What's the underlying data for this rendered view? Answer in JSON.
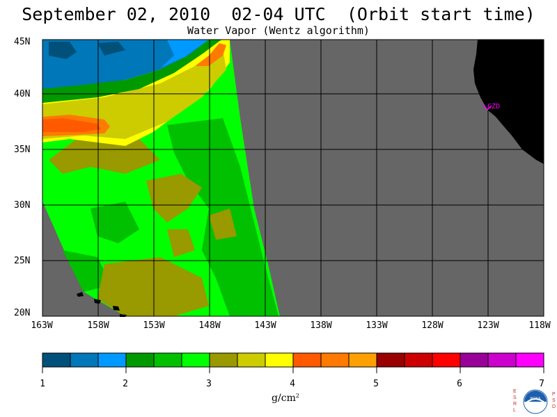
{
  "title": "September 02, 2010  02-04 UTC  (Orbit start time)",
  "subtitle": "Water Vapor (Wentz algorithm)",
  "map": {
    "lat_labels": [
      "45N",
      "40N",
      "35N",
      "30N",
      "25N",
      "20N"
    ],
    "lon_labels": [
      "163W",
      "158W",
      "153W",
      "148W",
      "143W",
      "138W",
      "133W",
      "128W",
      "123W",
      "118W"
    ],
    "station_label": "CZD",
    "colors": {
      "no_data": "#666666",
      "land": "#000000",
      "grid": "#000000",
      "station": "#ff00ff"
    }
  },
  "colorbar": {
    "colors": [
      "#00507a",
      "#0077b8",
      "#0099ff",
      "#009900",
      "#00c000",
      "#00ff00",
      "#999900",
      "#cccc00",
      "#ffff00",
      "#ff5a00",
      "#ff7a00",
      "#ffa000",
      "#990000",
      "#cc0000",
      "#ff0000",
      "#990099",
      "#cc00cc",
      "#ff00ff"
    ],
    "tick_labels": [
      "1",
      "2",
      "3",
      "4",
      "5",
      "6",
      "7"
    ],
    "units_base": "g/cm",
    "units_exp": "2"
  },
  "logo": {
    "left_letters": [
      "E",
      "S",
      "R",
      "L"
    ],
    "right_letters": [
      "P",
      "S",
      "D"
    ],
    "text": "NOAA"
  }
}
